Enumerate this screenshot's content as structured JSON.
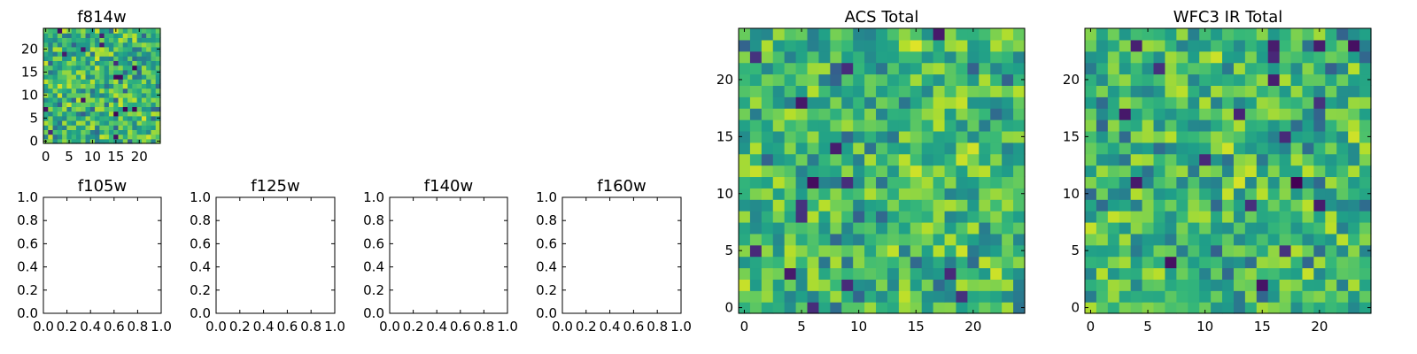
{
  "chart_data": [
    {
      "id": "f814w",
      "type": "heatmap",
      "title": "f814w",
      "xticks": [
        "0",
        "5",
        "10",
        "15",
        "20"
      ],
      "yticks": [
        "0",
        "5",
        "10",
        "15",
        "20"
      ],
      "xlim": [
        -0.5,
        24.5
      ],
      "ylim": [
        -0.5,
        24.5
      ],
      "grid_size": 25,
      "colormap": "viridis",
      "values_note_seed": 814
    },
    {
      "id": "f105w",
      "type": "heatmap",
      "title": "f105w",
      "xticks": [
        "0.0",
        "0.2",
        "0.4",
        "0.6",
        "0.8",
        "1.0"
      ],
      "yticks": [
        "0.0",
        "0.2",
        "0.4",
        "0.6",
        "0.8",
        "1.0"
      ],
      "xlim": [
        0,
        1
      ],
      "ylim": [
        0,
        1
      ],
      "empty": true
    },
    {
      "id": "f125w",
      "type": "heatmap",
      "title": "f125w",
      "xticks": [
        "0.0",
        "0.2",
        "0.4",
        "0.6",
        "0.8",
        "1.0"
      ],
      "yticks": [
        "0.0",
        "0.2",
        "0.4",
        "0.6",
        "0.8",
        "1.0"
      ],
      "xlim": [
        0,
        1
      ],
      "ylim": [
        0,
        1
      ],
      "empty": true
    },
    {
      "id": "f140w",
      "type": "heatmap",
      "title": "f140w",
      "xticks": [
        "0.0",
        "0.2",
        "0.4",
        "0.6",
        "0.8",
        "1.0"
      ],
      "yticks": [
        "0.0",
        "0.2",
        "0.4",
        "0.6",
        "0.8",
        "1.0"
      ],
      "xlim": [
        0,
        1
      ],
      "ylim": [
        0,
        1
      ],
      "empty": true
    },
    {
      "id": "f160w",
      "type": "heatmap",
      "title": "f160w",
      "xticks": [
        "0.0",
        "0.2",
        "0.4",
        "0.6",
        "0.8",
        "1.0"
      ],
      "yticks": [
        "0.0",
        "0.2",
        "0.4",
        "0.6",
        "0.8",
        "1.0"
      ],
      "xlim": [
        0,
        1
      ],
      "ylim": [
        0,
        1
      ],
      "empty": true
    },
    {
      "id": "acs_total",
      "type": "heatmap",
      "title": "ACS Total",
      "xticks": [
        "0",
        "5",
        "10",
        "15",
        "20"
      ],
      "yticks": [
        "0",
        "5",
        "10",
        "15",
        "20"
      ],
      "xlim": [
        -0.5,
        24.5
      ],
      "ylim": [
        -0.5,
        24.5
      ],
      "grid_size": 25,
      "colormap": "viridis"
    },
    {
      "id": "wfc3_ir_total",
      "type": "heatmap",
      "title": "WFC3 IR Total",
      "xticks": [
        "0",
        "5",
        "10",
        "15",
        "20"
      ],
      "yticks": [
        "0",
        "5",
        "10",
        "15",
        "20"
      ],
      "xlim": [
        -0.5,
        24.5
      ],
      "ylim": [
        -0.5,
        24.5
      ],
      "grid_size": 25,
      "colormap": "viridis"
    }
  ]
}
